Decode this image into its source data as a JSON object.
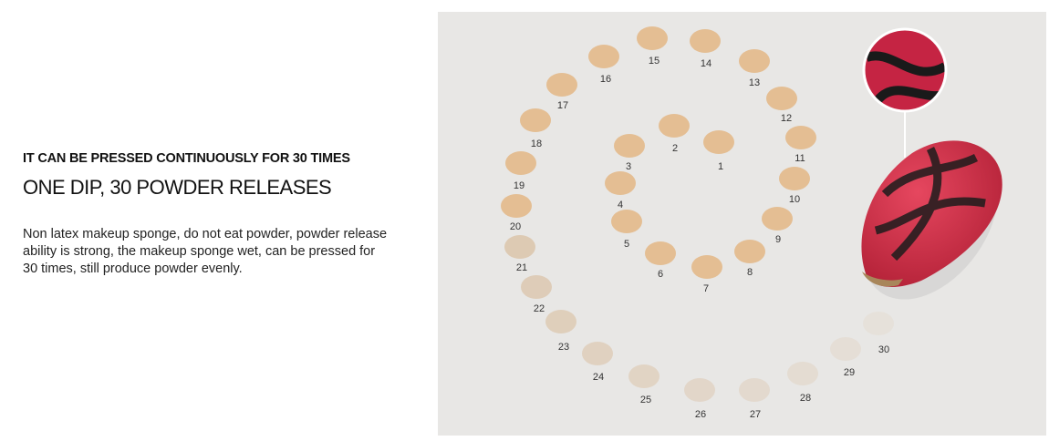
{
  "text": {
    "subheading": "IT CAN BE PRESSED CONTINUOUSLY FOR 30 TIMES",
    "heading": "ONE DIP, 30 POWDER RELEASES",
    "description": "Non latex makeup sponge, do not eat powder, powder release ability is strong, the makeup sponge wet, can be pressed for 30 times, still produce powder evenly."
  },
  "image": {
    "press_labels": [
      "1",
      "2",
      "3",
      "4",
      "5",
      "6",
      "7",
      "8",
      "9",
      "10",
      "11",
      "12",
      "13",
      "14",
      "15",
      "16",
      "17",
      "18",
      "19",
      "20",
      "21",
      "22",
      "23",
      "24",
      "25",
      "26",
      "27",
      "28",
      "29",
      "30"
    ],
    "colors": {
      "powder": "#e3b98a",
      "sponge": "#d8344f",
      "background": "#e8e7e5"
    }
  }
}
